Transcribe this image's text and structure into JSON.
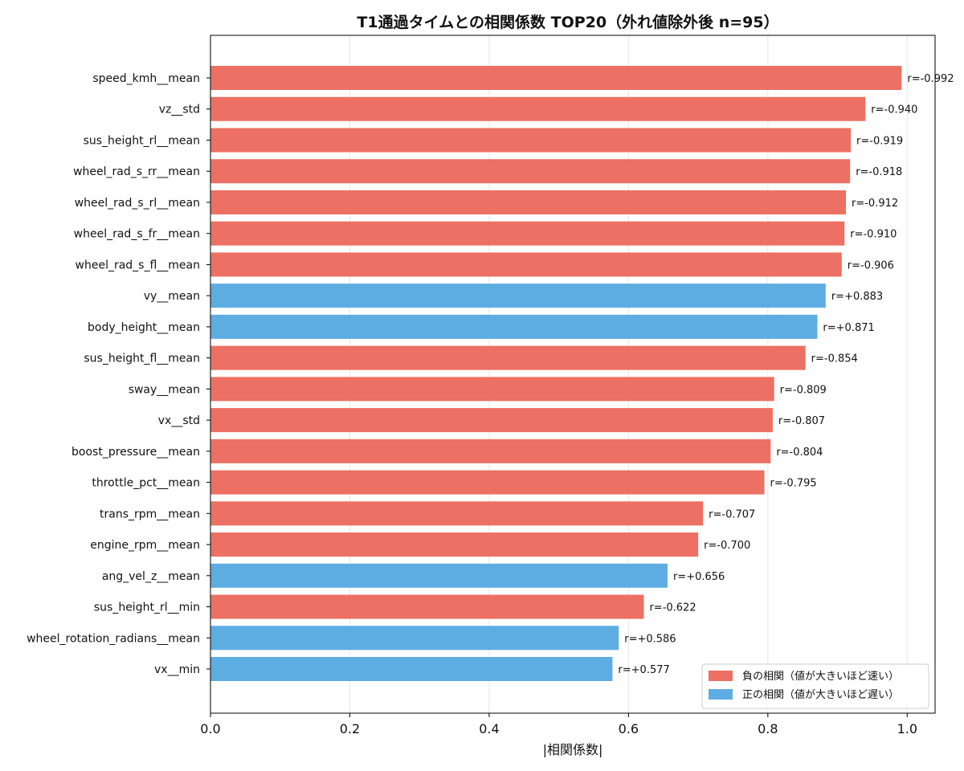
{
  "chart_data": {
    "type": "bar",
    "orientation": "horizontal",
    "title": "T1通過タイムとの相関係数 TOP20（外れ値除外後 n=95）",
    "xlabel": "|相関係数|",
    "ylabel": "",
    "xlim": [
      0,
      1.04
    ],
    "xticks": [
      "0.0",
      "0.2",
      "0.4",
      "0.6",
      "0.8",
      "1.0"
    ],
    "grid": "vertical",
    "legend_position": "lower-right",
    "colors": {
      "negative": "#EC7063",
      "positive": "#5DADE2"
    },
    "legend": [
      {
        "key": "negative",
        "label": "負の相関（値が大きいほど速い）"
      },
      {
        "key": "positive",
        "label": "正の相関（値が大きいほど遅い）"
      }
    ],
    "bars": [
      {
        "name": "speed_kmh__mean",
        "r": -0.992,
        "label": "r=-0.992"
      },
      {
        "name": "vz__std",
        "r": -0.94,
        "label": "r=-0.940"
      },
      {
        "name": "sus_height_rl__mean",
        "r": -0.919,
        "label": "r=-0.919"
      },
      {
        "name": "wheel_rad_s_rr__mean",
        "r": -0.918,
        "label": "r=-0.918"
      },
      {
        "name": "wheel_rad_s_rl__mean",
        "r": -0.912,
        "label": "r=-0.912"
      },
      {
        "name": "wheel_rad_s_fr__mean",
        "r": -0.91,
        "label": "r=-0.910"
      },
      {
        "name": "wheel_rad_s_fl__mean",
        "r": -0.906,
        "label": "r=-0.906"
      },
      {
        "name": "vy__mean",
        "r": 0.883,
        "label": "r=+0.883"
      },
      {
        "name": "body_height__mean",
        "r": 0.871,
        "label": "r=+0.871"
      },
      {
        "name": "sus_height_fl__mean",
        "r": -0.854,
        "label": "r=-0.854"
      },
      {
        "name": "sway__mean",
        "r": -0.809,
        "label": "r=-0.809"
      },
      {
        "name": "vx__std",
        "r": -0.807,
        "label": "r=-0.807"
      },
      {
        "name": "boost_pressure__mean",
        "r": -0.804,
        "label": "r=-0.804"
      },
      {
        "name": "throttle_pct__mean",
        "r": -0.795,
        "label": "r=-0.795"
      },
      {
        "name": "trans_rpm__mean",
        "r": -0.707,
        "label": "r=-0.707"
      },
      {
        "name": "engine_rpm__mean",
        "r": -0.7,
        "label": "r=-0.700"
      },
      {
        "name": "ang_vel_z__mean",
        "r": 0.656,
        "label": "r=+0.656"
      },
      {
        "name": "sus_height_rl__min",
        "r": -0.622,
        "label": "r=-0.622"
      },
      {
        "name": "wheel_rotation_radians__mean",
        "r": 0.586,
        "label": "r=+0.586"
      },
      {
        "name": "vx__min",
        "r": 0.577,
        "label": "r=+0.577"
      }
    ]
  }
}
